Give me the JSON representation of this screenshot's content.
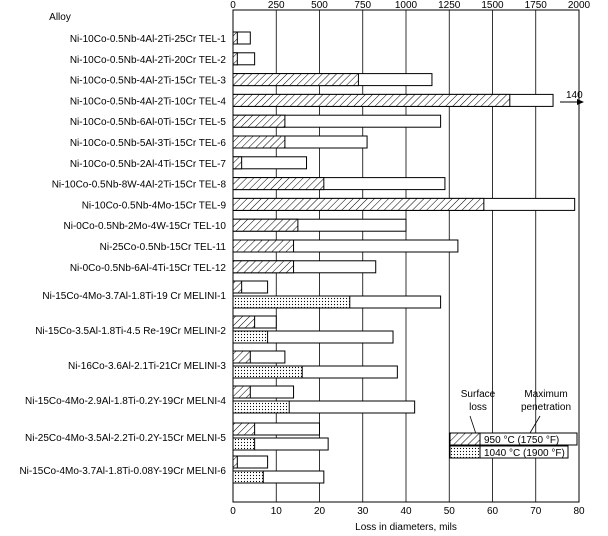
{
  "chart_data": {
    "type": "bar",
    "orientation": "horizontal",
    "category_header": "Alloy",
    "xlabel": "Loss in diameters, mils",
    "bottom_axis": {
      "range": [
        0,
        80
      ],
      "ticks": [
        "0",
        "10",
        "20",
        "30",
        "40",
        "50",
        "60",
        "70",
        "80"
      ]
    },
    "top_axis": {
      "range": [
        0,
        2000
      ],
      "ticks": [
        "0",
        "250",
        "500",
        "750",
        "1000",
        "1250",
        "1500",
        "1750",
        "2000"
      ]
    },
    "grid": "vertical lines at top-axis ticks",
    "categories": [
      "Ni-10Co-0.5Nb-4Al-2Ti-25Cr TEL-1",
      "Ni-10Co-0.5Nb-4Al-2Ti-20Cr TEL-2",
      "Ni-10Co-0.5Nb-4Al-2Ti-15Cr TEL-3",
      "Ni-10Co-0.5Nb-4Al-2Ti-10Cr TEL-4",
      "Ni-10Co-0.5Nb-6Al-0Ti-15Cr TEL-5",
      "Ni-10Co-0.5Nb-5Al-3Ti-15Cr TEL-6",
      "Ni-10Co-0.5Nb-2Al-4Ti-15Cr TEL-7",
      "Ni-10Co-0.5Nb-8W-4Al-2Ti-15Cr TEL-8",
      "Ni-10Co-0.5Nb-4Mo-15Cr TEL-9",
      "Ni-0Co-0.5Nb-2Mo-4W-15Cr TEL-10",
      "Ni-25Co-0.5Nb-15Cr TEL-11",
      "Ni-0Co-0.5Nb-6Al-4Ti-15Cr TEL-12",
      "Ni-15Co-4Mo-3.7Al-1.8Ti-19 Cr MELINI-1",
      "Ni-15Co-3.5Al-1.8Ti-4.5 Re-19Cr MELINI-2",
      "Ni-16Co-3.6Al-2.1Ti-21Cr MELINI-3",
      "Ni-15Co-4Mo-2.9Al-1.8Ti-0.2Y-19Cr MELNI-4",
      "Ni-25Co-4Mo-3.5Al-2.2Ti-0.2Y-15Cr MELNI-5",
      "Ni-15Co-4Mo-3.7Al-1.8Ti-0.08Y-19Cr MELNI-6"
    ],
    "series": [
      {
        "name": "950 °C (1750 °F)",
        "pattern": "hatched",
        "surface_loss": [
          1,
          1,
          29,
          64,
          12,
          12,
          2,
          21,
          58,
          15,
          14,
          14,
          2,
          5,
          4,
          4,
          5,
          1
        ],
        "maximum_penetration": [
          4,
          5,
          46,
          74,
          48,
          31,
          17,
          49,
          79,
          40,
          52,
          33,
          8,
          10,
          12,
          14,
          20,
          8
        ]
      },
      {
        "name": "1040 °C (1900 °F)",
        "pattern": "dotted",
        "surface_loss": [
          null,
          null,
          null,
          null,
          null,
          null,
          null,
          null,
          null,
          null,
          null,
          null,
          27,
          8,
          16,
          13,
          5,
          7
        ],
        "maximum_penetration": [
          null,
          null,
          null,
          null,
          null,
          null,
          null,
          null,
          null,
          null,
          null,
          null,
          48,
          37,
          38,
          42,
          22,
          21
        ]
      }
    ],
    "annotations": [
      {
        "text": "140",
        "row": "Ni-10Co-0.5Nb-4Al-2Ti-10Cr TEL-4"
      }
    ],
    "legend": {
      "placement": "bottom-right",
      "header_surface": [
        "Surface",
        "loss"
      ],
      "header_penetration": [
        "Maximum",
        "penetration"
      ]
    }
  }
}
